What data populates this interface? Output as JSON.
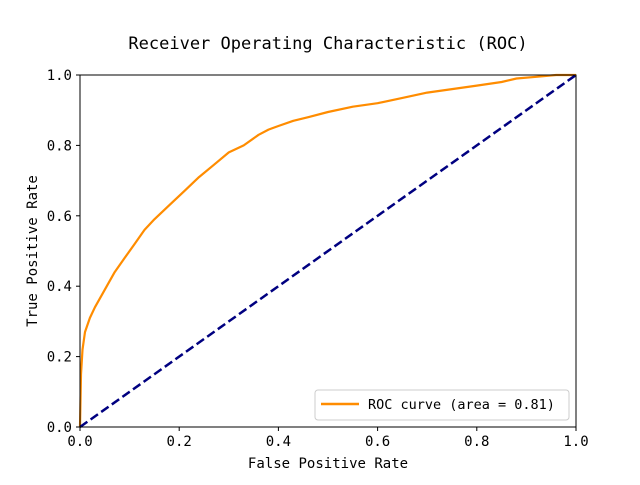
{
  "chart_data": {
    "type": "line",
    "title": "Receiver Operating Characteristic (ROC)",
    "xlabel": "False Positive Rate",
    "ylabel": "True Positive Rate",
    "xlim": [
      0.0,
      1.0
    ],
    "ylim": [
      0.0,
      1.0
    ],
    "x_ticks": [
      "0.0",
      "0.2",
      "0.4",
      "0.6",
      "0.8",
      "1.0"
    ],
    "y_ticks": [
      "0.0",
      "0.2",
      "0.4",
      "0.6",
      "0.8",
      "1.0"
    ],
    "grid": false,
    "legend_position": "lower right",
    "series": [
      {
        "name": "ROC curve (area = 0.81)",
        "color": "#ff8c00",
        "style": "solid",
        "x": [
          0.0,
          0.002,
          0.005,
          0.01,
          0.02,
          0.03,
          0.05,
          0.07,
          0.09,
          0.11,
          0.13,
          0.15,
          0.18,
          0.21,
          0.24,
          0.27,
          0.3,
          0.33,
          0.36,
          0.38,
          0.4,
          0.43,
          0.46,
          0.5,
          0.55,
          0.6,
          0.65,
          0.7,
          0.75,
          0.8,
          0.85,
          0.88,
          0.92,
          0.96,
          1.0
        ],
        "y": [
          0.0,
          0.15,
          0.22,
          0.27,
          0.31,
          0.34,
          0.39,
          0.44,
          0.48,
          0.52,
          0.56,
          0.59,
          0.63,
          0.67,
          0.71,
          0.745,
          0.78,
          0.8,
          0.83,
          0.845,
          0.855,
          0.87,
          0.88,
          0.895,
          0.91,
          0.92,
          0.935,
          0.95,
          0.96,
          0.97,
          0.98,
          0.99,
          0.995,
          1.0,
          1.0
        ]
      },
      {
        "color": "#000080",
        "style": "dashed",
        "x": [
          0.0,
          1.0
        ],
        "y": [
          0.0,
          1.0
        ]
      }
    ]
  }
}
